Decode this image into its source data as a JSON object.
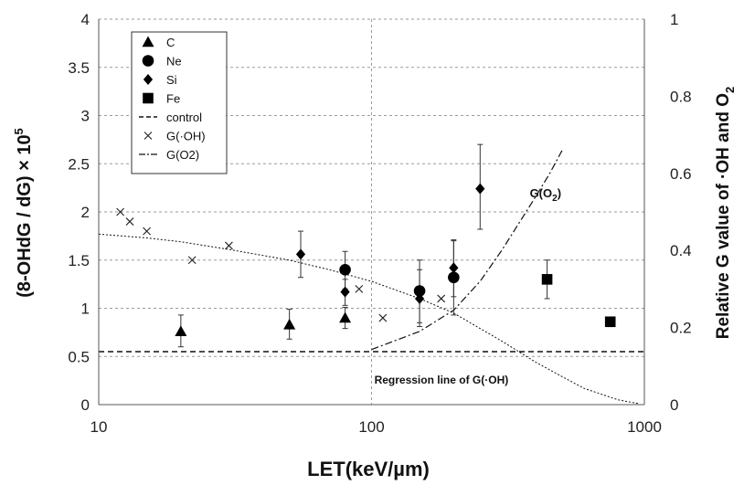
{
  "chart_data": {
    "type": "scatter",
    "x_axis": {
      "label": "LET(keV/µm)",
      "scale": "log",
      "range": [
        10,
        1000
      ],
      "ticks": [
        10,
        100,
        1000
      ],
      "tick_labels": [
        "10",
        "100",
        "1000"
      ]
    },
    "y_axis_left": {
      "label": "(8-OHdG / dG) × 10",
      "label_superscript": "5",
      "range": [
        0,
        4
      ],
      "ticks": [
        0,
        0.5,
        1,
        1.5,
        2,
        2.5,
        3,
        3.5,
        4
      ],
      "tick_labels": [
        "0",
        "0.5",
        "1",
        "1.5",
        "2",
        "2.5",
        "3",
        "3.5",
        "4"
      ]
    },
    "y_axis_right": {
      "label_prefix": "Relative G value of ·OH and O",
      "label_subscript": "2",
      "range": [
        0,
        1
      ],
      "ticks": [
        0,
        0.2,
        0.4,
        0.6,
        0.8,
        1
      ],
      "tick_labels": [
        "0",
        "0.2",
        "0.4",
        "0.6",
        "0.8",
        "1"
      ]
    },
    "grid": "horizontal dashed lines on left-axis ticks; one vertical dashed line at x=100",
    "legend": {
      "placement": "top-left",
      "entries": [
        {
          "marker": "triangle",
          "label": "C"
        },
        {
          "marker": "circle",
          "label": "Ne"
        },
        {
          "marker": "diamond",
          "label": "Si"
        },
        {
          "marker": "square",
          "label": "Fe"
        },
        {
          "marker": "dashed-line",
          "label": "control"
        },
        {
          "marker": "x",
          "label": "G(·OH)"
        },
        {
          "marker": "dash-dot-line",
          "label": "G(O2)"
        }
      ]
    },
    "series": [
      {
        "name": "C",
        "marker": "triangle",
        "axis": "left",
        "points": [
          {
            "x": 20,
            "y": 0.76,
            "err_low": 0.6,
            "err_high": 0.93
          },
          {
            "x": 50,
            "y": 0.83,
            "err_low": 0.68,
            "err_high": 0.99
          },
          {
            "x": 80,
            "y": 0.9,
            "err_low": 0.79,
            "err_high": 1.01
          }
        ]
      },
      {
        "name": "Ne",
        "marker": "circle",
        "axis": "left",
        "points": [
          {
            "x": 80,
            "y": 1.4,
            "err_low": 1.2,
            "err_high": 1.59
          },
          {
            "x": 150,
            "y": 1.18,
            "err_low": 0.85,
            "err_high": 1.5
          },
          {
            "x": 200,
            "y": 1.32,
            "err_low": 0.93,
            "err_high": 1.7
          }
        ]
      },
      {
        "name": "Si",
        "marker": "diamond",
        "axis": "left",
        "points": [
          {
            "x": 55,
            "y": 1.56,
            "err_low": 1.32,
            "err_high": 1.8
          },
          {
            "x": 80,
            "y": 1.17,
            "err_low": 1.03,
            "err_high": 1.3
          },
          {
            "x": 150,
            "y": 1.1,
            "err_low": 0.81,
            "err_high": 1.4
          },
          {
            "x": 200,
            "y": 1.42,
            "err_low": 1.12,
            "err_high": 1.71
          },
          {
            "x": 250,
            "y": 2.24,
            "err_low": 1.82,
            "err_high": 2.7
          }
        ]
      },
      {
        "name": "Fe",
        "marker": "square",
        "axis": "left",
        "points": [
          {
            "x": 440,
            "y": 1.3,
            "err_low": 1.1,
            "err_high": 1.5
          },
          {
            "x": 750,
            "y": 0.86,
            "err_low": 0.81,
            "err_high": 0.9
          }
        ]
      },
      {
        "name": "G(·OH)",
        "marker": "x",
        "axis": "left",
        "points": [
          {
            "x": 12,
            "y": 2.0
          },
          {
            "x": 13,
            "y": 1.9
          },
          {
            "x": 15,
            "y": 1.8
          },
          {
            "x": 22,
            "y": 1.5
          },
          {
            "x": 30,
            "y": 1.65
          },
          {
            "x": 90,
            "y": 1.2
          },
          {
            "x": 110,
            "y": 0.9
          },
          {
            "x": 180,
            "y": 1.1
          }
        ]
      },
      {
        "name": "control",
        "style": "dashed",
        "axis": "left",
        "line": [
          {
            "x": 10,
            "y": 0.55
          },
          {
            "x": 1000,
            "y": 0.55
          }
        ]
      },
      {
        "name": "Regression line of G(·OH)",
        "style": "dotted",
        "axis": "left",
        "line": [
          {
            "x": 10,
            "y": 1.77
          },
          {
            "x": 15,
            "y": 1.73
          },
          {
            "x": 20,
            "y": 1.69
          },
          {
            "x": 30,
            "y": 1.61
          },
          {
            "x": 50,
            "y": 1.5
          },
          {
            "x": 70,
            "y": 1.4
          },
          {
            "x": 100,
            "y": 1.28
          },
          {
            "x": 150,
            "y": 1.1
          },
          {
            "x": 200,
            "y": 0.95
          },
          {
            "x": 300,
            "y": 0.66
          },
          {
            "x": 400,
            "y": 0.44
          },
          {
            "x": 500,
            "y": 0.29
          },
          {
            "x": 600,
            "y": 0.17
          },
          {
            "x": 800,
            "y": 0.05
          },
          {
            "x": 950,
            "y": 0.01
          }
        ]
      },
      {
        "name": "G(O2)",
        "style": "dash-dot",
        "axis": "right",
        "line": [
          {
            "x": 100,
            "y": 0.143
          },
          {
            "x": 150,
            "y": 0.19
          },
          {
            "x": 200,
            "y": 0.245
          },
          {
            "x": 250,
            "y": 0.32
          },
          {
            "x": 300,
            "y": 0.4
          },
          {
            "x": 350,
            "y": 0.475
          },
          {
            "x": 400,
            "y": 0.54
          },
          {
            "x": 450,
            "y": 0.6
          },
          {
            "x": 500,
            "y": 0.66
          }
        ]
      }
    ],
    "annotations": [
      {
        "text": "G(O",
        "subscript": "2",
        "suffix": ")",
        "x": 380,
        "y": 2.15
      },
      {
        "text": "Regression line of G(·OH)",
        "x": 380,
        "y": 0.22
      }
    ]
  }
}
